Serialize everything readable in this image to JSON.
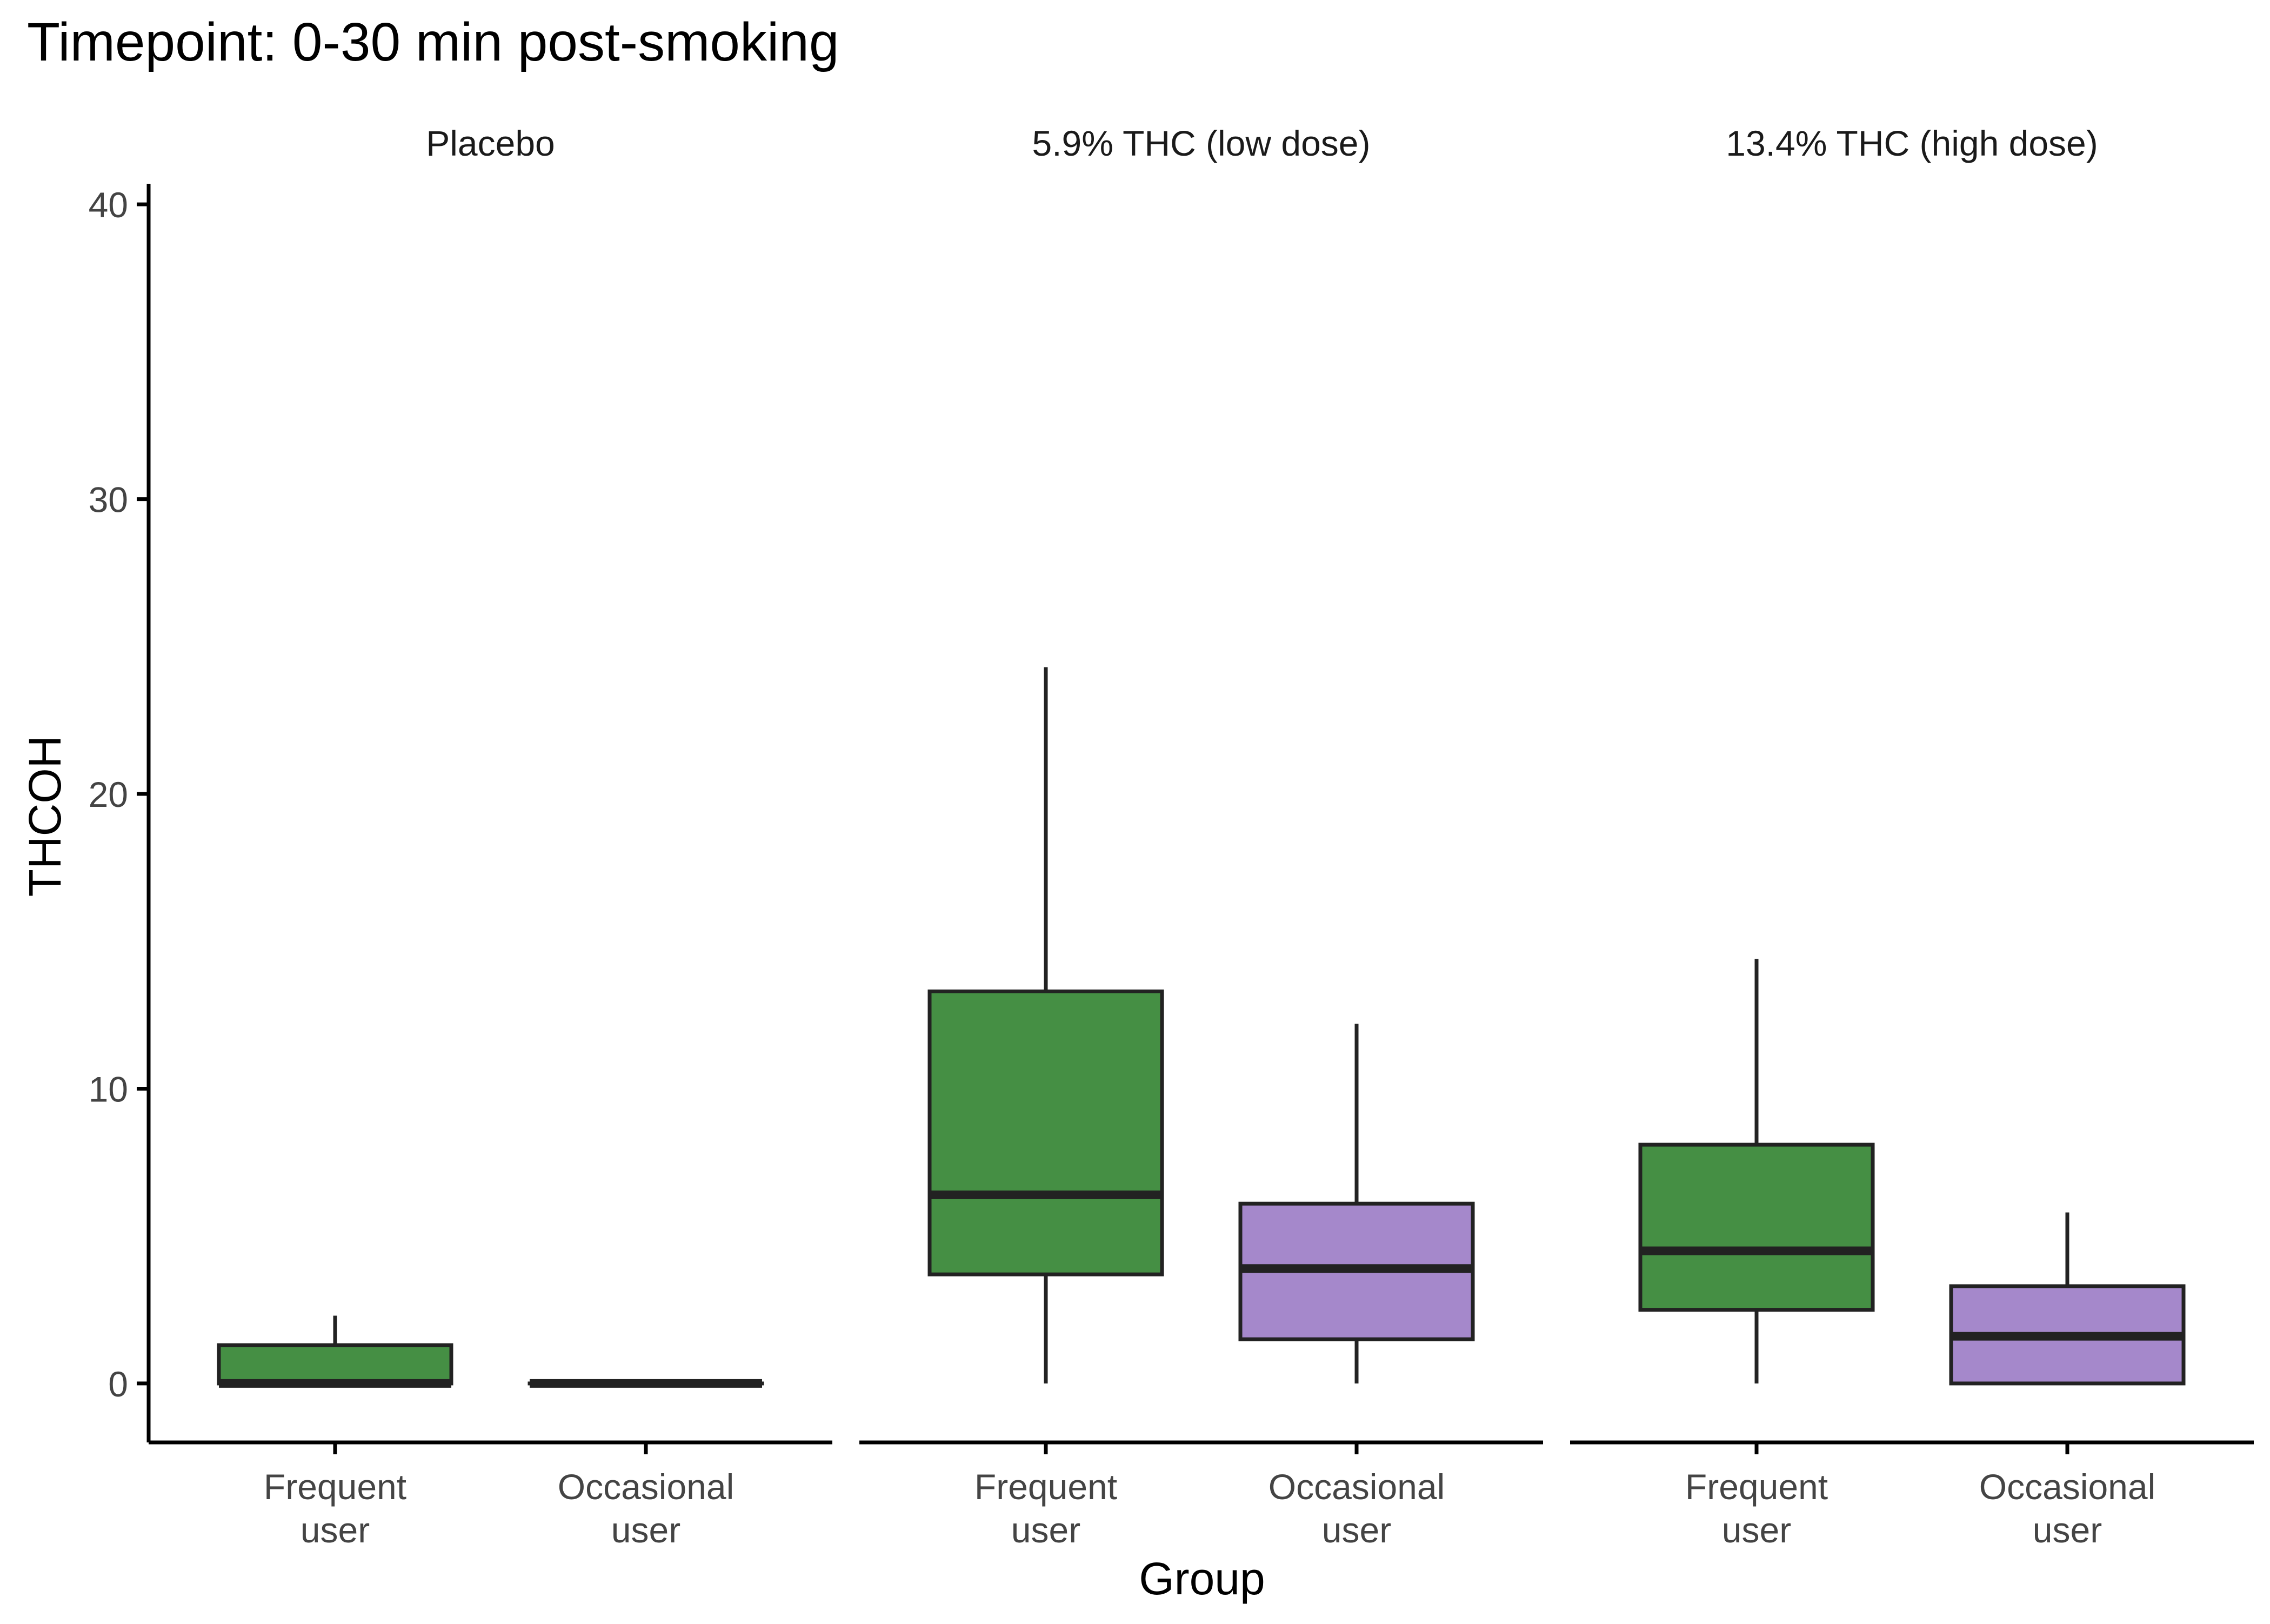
{
  "chart_data": {
    "type": "boxplot",
    "title": "Timepoint: 0-30 min post-smoking",
    "xlabel": "Group",
    "ylabel": "THCOH",
    "ylim": [
      -2,
      40.7
    ],
    "y_ticks": [
      0,
      10,
      20,
      30,
      40
    ],
    "grid": false,
    "legend": "none",
    "colors": {
      "Frequent user": "#458f44",
      "Occasional user": "#a588cb"
    },
    "panels": [
      {
        "label": "Placebo",
        "groups": [
          {
            "category": "Frequent user",
            "category_lines": [
              "Frequent",
              "user"
            ],
            "lower_whisker": 0,
            "q1": 0,
            "median": 0,
            "q3": 1.3,
            "upper_whisker": 2.3
          },
          {
            "category": "Occasional user",
            "category_lines": [
              "Occasional",
              "user"
            ],
            "lower_whisker": 0,
            "q1": 0,
            "median": 0,
            "q3": 0,
            "upper_whisker": 0
          }
        ]
      },
      {
        "label": "5.9% THC (low dose)",
        "groups": [
          {
            "category": "Frequent user",
            "category_lines": [
              "Frequent",
              "user"
            ],
            "lower_whisker": 0,
            "q1": 3.7,
            "median": 6.4,
            "q3": 13.3,
            "upper_whisker": 24.3
          },
          {
            "category": "Occasional user",
            "category_lines": [
              "Occasional",
              "user"
            ],
            "lower_whisker": 0,
            "q1": 1.5,
            "median": 3.9,
            "q3": 6.1,
            "upper_whisker": 12.2
          }
        ]
      },
      {
        "label": "13.4% THC (high dose)",
        "groups": [
          {
            "category": "Frequent user",
            "category_lines": [
              "Frequent",
              "user"
            ],
            "lower_whisker": 0,
            "q1": 2.5,
            "median": 4.5,
            "q3": 8.1,
            "upper_whisker": 14.4
          },
          {
            "category": "Occasional user",
            "category_lines": [
              "Occasional",
              "user"
            ],
            "lower_whisker": 0,
            "q1": 0,
            "median": 1.6,
            "q3": 3.3,
            "upper_whisker": 5.8
          }
        ]
      }
    ]
  }
}
